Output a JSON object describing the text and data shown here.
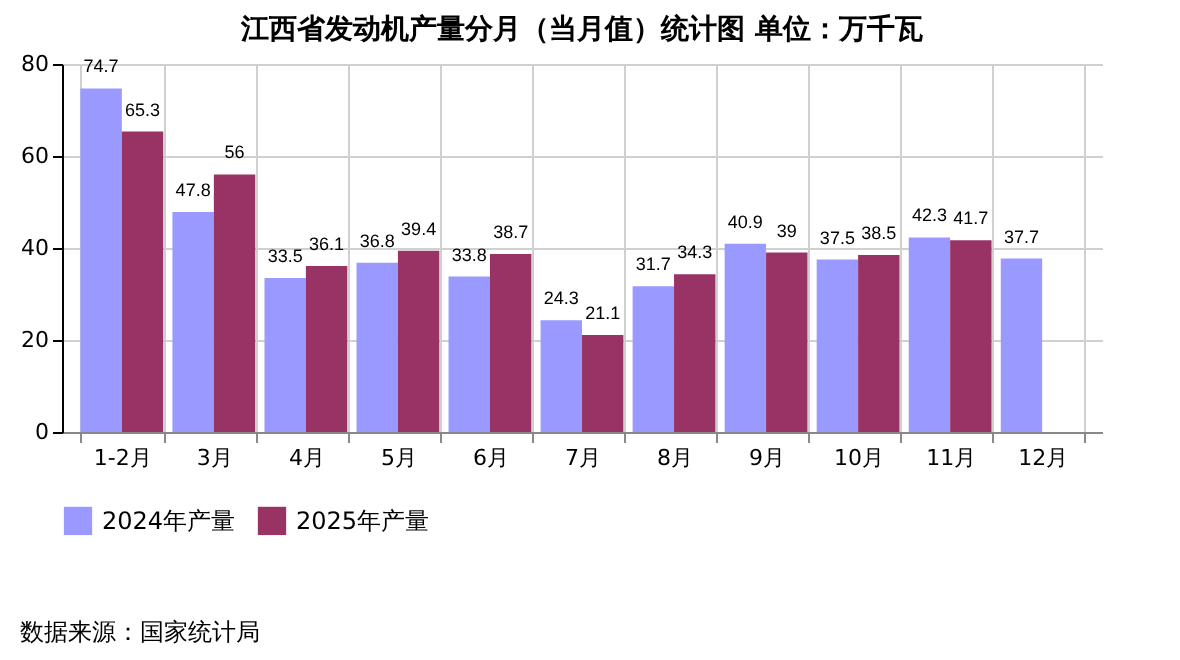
{
  "chart_data": {
    "type": "bar",
    "title": "江西省发动机产量分月（当月值）统计图 单位：万千瓦",
    "categories": [
      "1-2月",
      "3月",
      "4月",
      "5月",
      "6月",
      "7月",
      "8月",
      "9月",
      "10月",
      "11月",
      "12月"
    ],
    "series": [
      {
        "name": "2024年产量",
        "color": "#9999ff",
        "values": [
          74.7,
          47.8,
          33.5,
          36.8,
          33.8,
          24.3,
          31.7,
          40.9,
          37.5,
          42.3,
          37.7
        ]
      },
      {
        "name": "2025年产量",
        "color": "#993366",
        "values": [
          65.3,
          56,
          36.1,
          39.4,
          38.7,
          21.1,
          34.3,
          39,
          38.5,
          41.7,
          null
        ]
      }
    ],
    "ylim": [
      0,
      80
    ],
    "yticks": [
      0,
      20,
      40,
      60,
      80
    ],
    "grid": true,
    "legend": "bottom",
    "data_labels": true,
    "annotations": [
      "数据来源：国家统计局"
    ]
  }
}
